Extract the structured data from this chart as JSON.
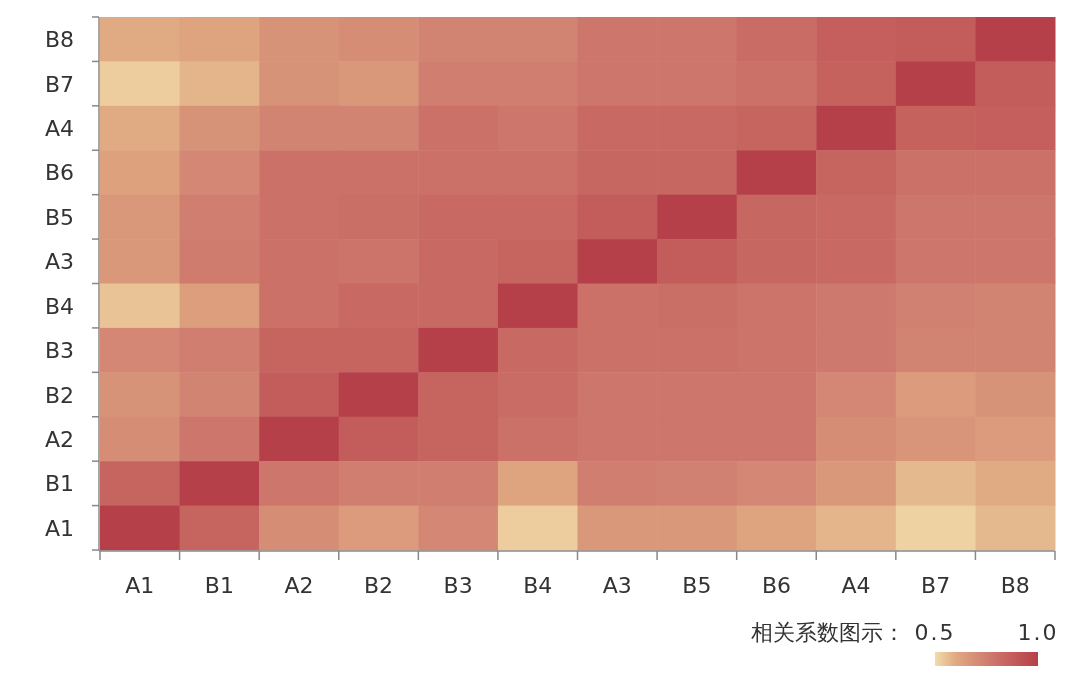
{
  "chart_data": {
    "type": "heatmap",
    "categories": [
      "A1",
      "B1",
      "A2",
      "B2",
      "B3",
      "B4",
      "A3",
      "B5",
      "B6",
      "A4",
      "B7",
      "B8"
    ],
    "y_categories": [
      "B8",
      "B7",
      "A4",
      "B6",
      "B5",
      "A3",
      "B4",
      "B3",
      "B2",
      "A2",
      "B1",
      "A1"
    ],
    "cells": [
      [
        0.6,
        0.62,
        0.68,
        0.7,
        0.73,
        0.73,
        0.78,
        0.78,
        0.82,
        0.87,
        0.88,
        1
      ],
      [
        0.53,
        0.58,
        0.68,
        0.66,
        0.75,
        0.75,
        0.78,
        0.78,
        0.8,
        0.86,
        1,
        0.88
      ],
      [
        0.6,
        0.68,
        0.73,
        0.73,
        0.8,
        0.78,
        0.83,
        0.83,
        0.85,
        1,
        0.86,
        0.87
      ],
      [
        0.63,
        0.72,
        0.8,
        0.8,
        0.8,
        0.8,
        0.84,
        0.84,
        1,
        0.85,
        0.8,
        0.8
      ],
      [
        0.66,
        0.75,
        0.8,
        0.81,
        0.83,
        0.83,
        0.88,
        1,
        0.84,
        0.83,
        0.78,
        0.78
      ],
      [
        0.66,
        0.76,
        0.8,
        0.79,
        0.83,
        0.85,
        1,
        0.88,
        0.84,
        0.83,
        0.78,
        0.78
      ],
      [
        0.55,
        0.64,
        0.8,
        0.83,
        0.83,
        1,
        0.8,
        0.81,
        0.79,
        0.77,
        0.74,
        0.73
      ],
      [
        0.72,
        0.75,
        0.85,
        0.85,
        1,
        0.83,
        0.8,
        0.8,
        0.79,
        0.77,
        0.73,
        0.73
      ],
      [
        0.68,
        0.73,
        0.88,
        1,
        0.85,
        0.82,
        0.78,
        0.78,
        0.78,
        0.72,
        0.65,
        0.68
      ],
      [
        0.7,
        0.78,
        1,
        0.88,
        0.85,
        0.8,
        0.78,
        0.78,
        0.78,
        0.7,
        0.67,
        0.65
      ],
      [
        0.85,
        1,
        0.78,
        0.75,
        0.75,
        0.62,
        0.75,
        0.74,
        0.72,
        0.66,
        0.57,
        0.6
      ],
      [
        1,
        0.85,
        0.7,
        0.65,
        0.72,
        0.53,
        0.66,
        0.66,
        0.62,
        0.58,
        0.52,
        0.57
      ]
    ],
    "clim": [
      0.5,
      1
    ],
    "cticks": [
      0.5,
      {
        "value": 1,
        "label": "1.0"
      }
    ],
    "clabel": "相关系数图示："
  }
}
